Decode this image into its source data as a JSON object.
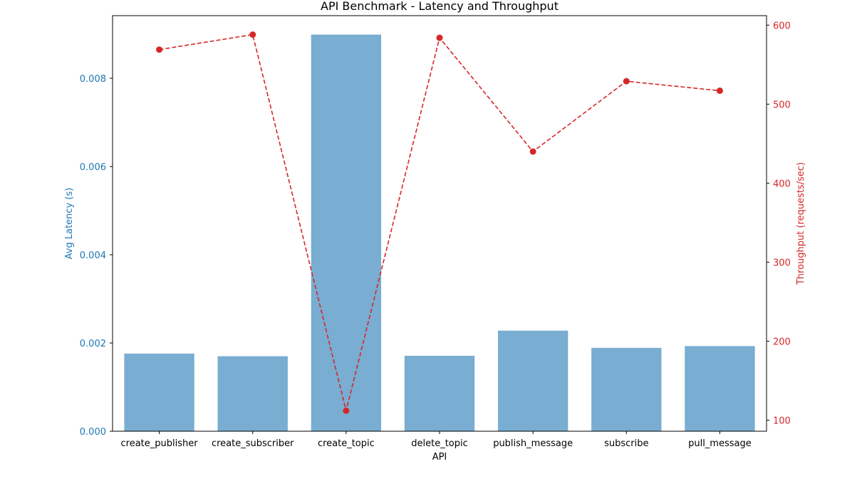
{
  "chart_data": {
    "type": "bar",
    "title": "API Benchmark - Latency and Throughput",
    "xlabel": "API",
    "categories": [
      "create_publisher",
      "create_subscriber",
      "create_topic",
      "delete_topic",
      "publish_message",
      "subscribe",
      "pull_message"
    ],
    "left_axis": {
      "label": "Avg Latency (s)",
      "color": "#1f77b4",
      "ylim": [
        0,
        0.00942
      ],
      "ticks": [
        0.0,
        0.002,
        0.004,
        0.006,
        0.008
      ],
      "tick_labels": [
        "0.000",
        "0.002",
        "0.004",
        "0.006",
        "0.008"
      ]
    },
    "right_axis": {
      "label": "Throughput (requests/sec)",
      "color": "#d62728",
      "ylim": [
        86,
        612
      ],
      "ticks": [
        100,
        200,
        300,
        400,
        500,
        600
      ],
      "tick_labels": [
        "100",
        "200",
        "300",
        "400",
        "500",
        "600"
      ]
    },
    "series": [
      {
        "type": "bar",
        "axis": "left",
        "color": "#1f77b4",
        "opacity": 0.6,
        "values": [
          0.00176,
          0.0017,
          0.00899,
          0.00171,
          0.00228,
          0.00189,
          0.00193
        ]
      },
      {
        "type": "line",
        "axis": "right",
        "color": "#d62728",
        "linestyle": "dashed",
        "marker": "circle",
        "values": [
          569,
          588,
          112,
          584,
          440,
          529,
          517
        ]
      }
    ],
    "grid": false,
    "legend": "none"
  }
}
